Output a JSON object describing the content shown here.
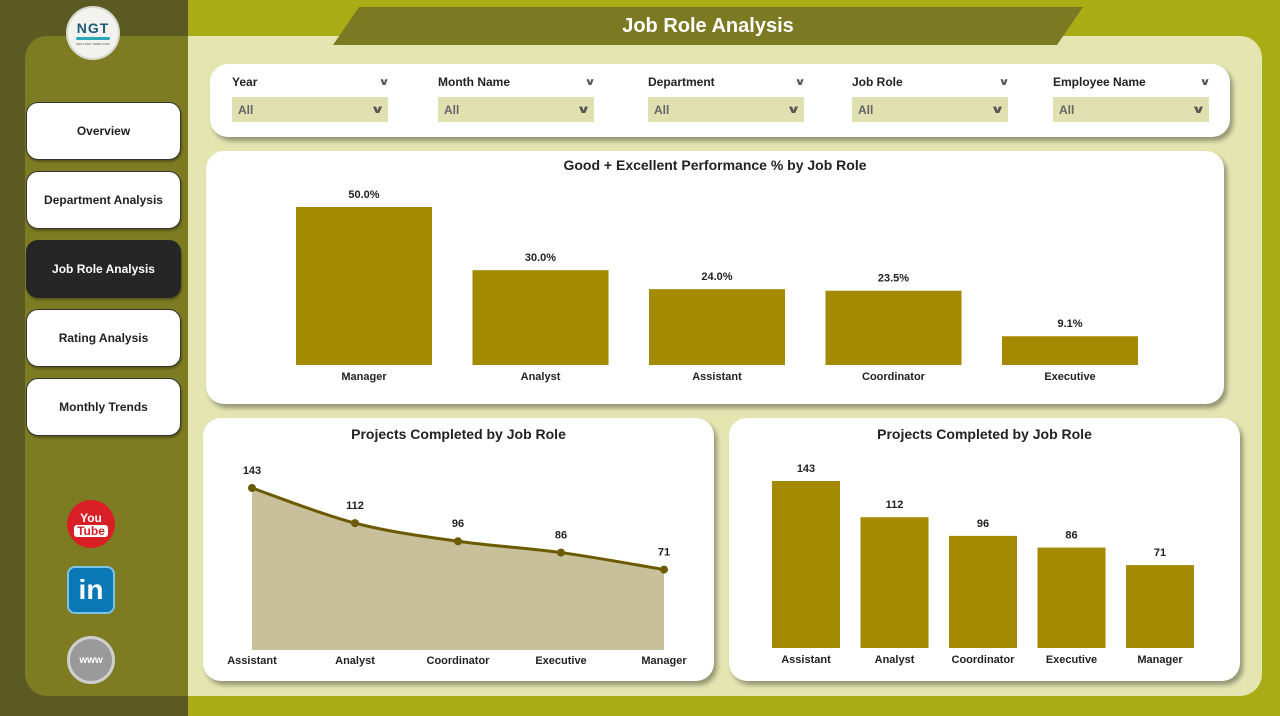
{
  "logo": {
    "text": "NGT",
    "subtitle": "NEXT GEN TEMPLATES"
  },
  "nav": [
    {
      "label": "Overview",
      "active": false
    },
    {
      "label": "Department Analysis",
      "active": false
    },
    {
      "label": "Job Role Analysis",
      "active": true
    },
    {
      "label": "Rating Analysis",
      "active": false
    },
    {
      "label": "Monthly Trends",
      "active": false
    }
  ],
  "social": {
    "youtube_top": "You",
    "youtube_bottom": "Tube",
    "linkedin": "in",
    "web": "www"
  },
  "page_title": "Job Role Analysis",
  "filters": [
    {
      "label": "Year",
      "value": "All"
    },
    {
      "label": "Month Name",
      "value": "All"
    },
    {
      "label": "Department",
      "value": "All"
    },
    {
      "label": "Job Role",
      "value": "All"
    },
    {
      "label": "Employee Name",
      "value": "All"
    }
  ],
  "colors": {
    "bar": "#a38a00",
    "area_fill": "#c7c09b",
    "line": "#6b5a00"
  },
  "chart_data": [
    {
      "type": "bar",
      "title": "Good + Excellent Performance % by Job Role",
      "categories": [
        "Manager",
        "Analyst",
        "Assistant",
        "Coordinator",
        "Executive"
      ],
      "values": [
        50.0,
        30.0,
        24.0,
        23.5,
        9.1
      ],
      "labels": [
        "50.0%",
        "30.0%",
        "24.0%",
        "23.5%",
        "9.1%"
      ],
      "ylim": [
        0,
        50
      ]
    },
    {
      "type": "area",
      "title": "Projects Completed by Job Role",
      "categories": [
        "Assistant",
        "Analyst",
        "Coordinator",
        "Executive",
        "Manager"
      ],
      "values": [
        143,
        112,
        96,
        86,
        71
      ],
      "labels": [
        "143",
        "112",
        "96",
        "86",
        "71"
      ],
      "ylim": [
        0,
        143
      ]
    },
    {
      "type": "bar",
      "title": "Projects Completed by Job Role",
      "categories": [
        "Assistant",
        "Analyst",
        "Coordinator",
        "Executive",
        "Manager"
      ],
      "values": [
        143,
        112,
        96,
        86,
        71
      ],
      "labels": [
        "143",
        "112",
        "96",
        "86",
        "71"
      ],
      "ylim": [
        0,
        143
      ]
    }
  ]
}
